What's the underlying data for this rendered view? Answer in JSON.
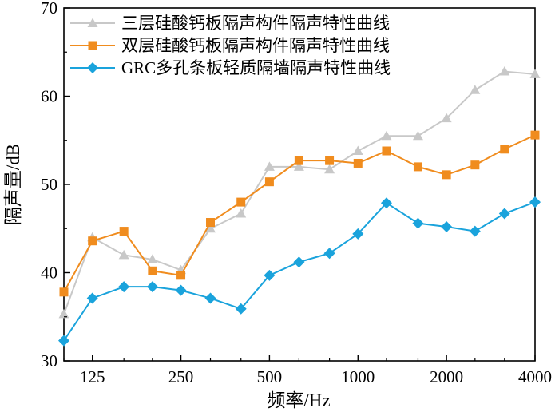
{
  "chart_data": {
    "type": "line",
    "title": "",
    "xlabel": "频率/Hz",
    "ylabel": "隔声量/dB",
    "x_scale": "log",
    "x": [
      100,
      125,
      160,
      200,
      250,
      315,
      400,
      500,
      630,
      800,
      1000,
      1250,
      1600,
      2000,
      2500,
      3150,
      4000
    ],
    "xlim": [
      100,
      4000
    ],
    "x_tick_values": [
      125,
      250,
      500,
      1000,
      2000,
      4000
    ],
    "x_tick_labels": [
      "125",
      "250",
      "500",
      "1000",
      "2000",
      "4000"
    ],
    "ylim": [
      30,
      70
    ],
    "y_tick_values": [
      30,
      40,
      50,
      60,
      70
    ],
    "y_tick_labels": [
      "30",
      "40",
      "50",
      "60",
      "70"
    ],
    "grid": false,
    "legend_position": "top-left",
    "series": [
      {
        "name": "三层硅酸钙板隔声构件隔声特性曲线",
        "color": "#c8c8c8",
        "marker": "triangle",
        "values": [
          35.3,
          44.0,
          42.0,
          41.5,
          40.3,
          45.0,
          46.7,
          52.0,
          52.0,
          51.7,
          53.8,
          55.5,
          55.5,
          57.5,
          60.7,
          62.8,
          62.5
        ]
      },
      {
        "name": "双层硅酸钙板隔声构件隔声特性曲线",
        "color": "#f08c1e",
        "marker": "square",
        "values": [
          37.8,
          43.6,
          44.7,
          40.2,
          39.7,
          45.7,
          48.0,
          50.3,
          52.7,
          52.7,
          52.4,
          53.8,
          52.0,
          51.1,
          52.2,
          54.0,
          55.6
        ]
      },
      {
        "name": "GRC多孔条板轻质隔墙隔声特性曲线",
        "color": "#1aa3dc",
        "marker": "diamond",
        "values": [
          32.3,
          37.1,
          38.4,
          38.4,
          38.0,
          37.1,
          35.9,
          39.7,
          41.2,
          42.2,
          44.4,
          47.9,
          45.6,
          45.2,
          44.7,
          46.7,
          48.0
        ]
      }
    ]
  }
}
